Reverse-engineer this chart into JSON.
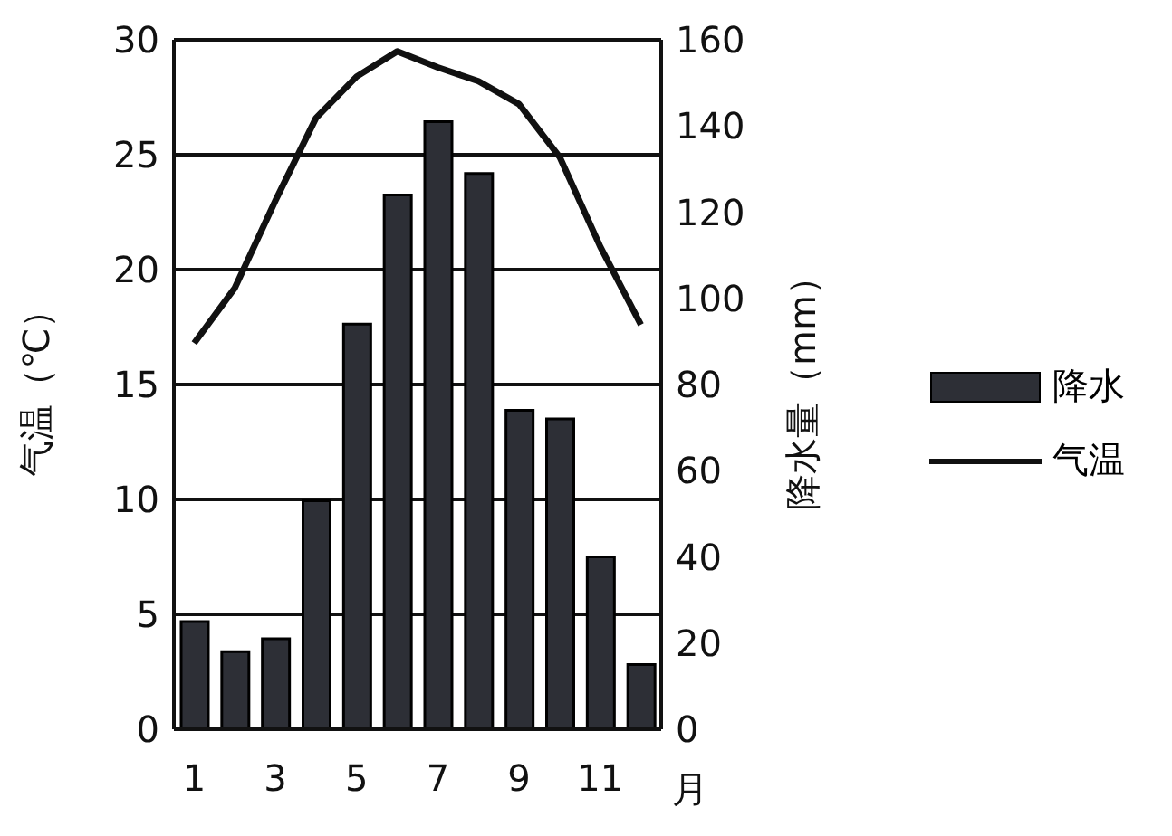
{
  "chart_data": {
    "type": "bar",
    "xlabel": "月",
    "ylabel": "气温（℃）",
    "y2label": "降水量（mm）",
    "categories": [
      "1",
      null,
      "3",
      null,
      "5",
      null,
      "7",
      null,
      "9",
      null,
      "11",
      null
    ],
    "series": [
      {
        "name": "降水",
        "axis": "y2",
        "color": "#2d2f36",
        "values": [
          25,
          18,
          21,
          53,
          94,
          124,
          141,
          129,
          74,
          72,
          40,
          15
        ]
      },
      {
        "name": "气温",
        "type": "line",
        "color": "#111111",
        "values": [
          16.8,
          19.2,
          23,
          26.6,
          28.4,
          29.5,
          28.8,
          28.2,
          27.2,
          24.9,
          21,
          17.6
        ]
      }
    ],
    "ylim": [
      0,
      30
    ],
    "yticks": [
      0,
      5,
      10,
      15,
      20,
      25,
      30
    ],
    "y2lim": [
      0,
      160
    ],
    "y2ticks": [
      0,
      20,
      40,
      60,
      80,
      100,
      120,
      140,
      160
    ],
    "grid": "y",
    "legend": "right",
    "marker": "none",
    "line_style": "solid"
  }
}
